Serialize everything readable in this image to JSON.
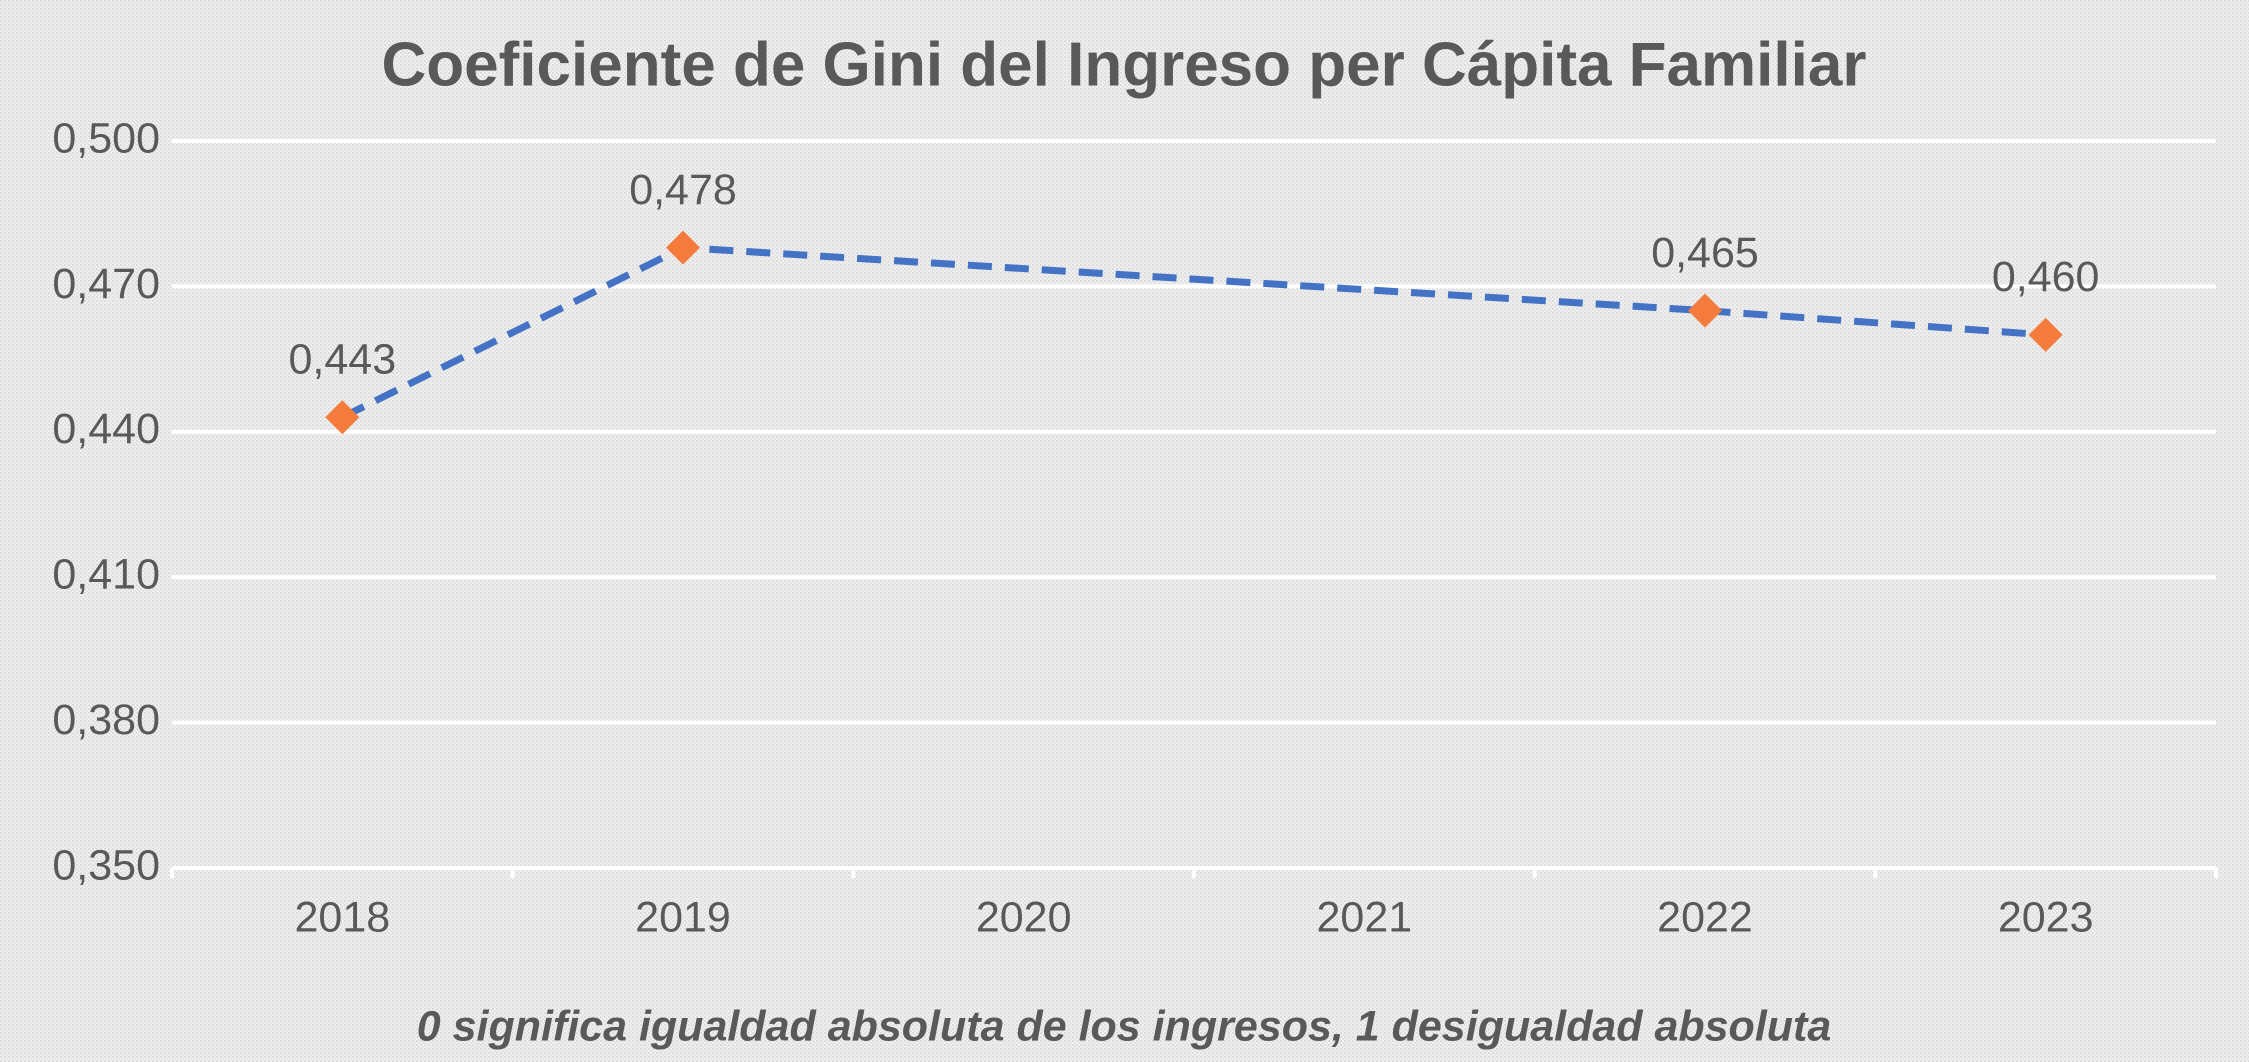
{
  "chart_data": {
    "type": "line",
    "title": "Coeficiente de Gini del Ingreso per Cápita Familiar",
    "subtitle": "0 significa igualdad absoluta de los ingresos,  1 desigualdad absoluta",
    "x": [
      2018,
      2019,
      2022,
      2023
    ],
    "xlim": [
      2017.5,
      2023.5
    ],
    "xticks": [
      2018,
      2019,
      2020,
      2021,
      2022,
      2023
    ],
    "series": [
      {
        "name": "Coeficiente de Gini",
        "color": "#4472c4",
        "marker_color": "#f57b3c",
        "values": [
          0.443,
          0.478,
          0.465,
          0.46
        ],
        "value_labels": [
          "0,443",
          "0,478",
          "0,465",
          "0,460"
        ]
      }
    ],
    "ylim": [
      0.35,
      0.5
    ],
    "yticks": [
      {
        "value": 0.35,
        "label": "0,350"
      },
      {
        "value": 0.38,
        "label": "0,380"
      },
      {
        "value": 0.41,
        "label": "0,410"
      },
      {
        "value": 0.44,
        "label": "0,440"
      },
      {
        "value": 0.47,
        "label": "0,470"
      },
      {
        "value": 0.5,
        "label": "0,500"
      }
    ],
    "grid": true
  }
}
